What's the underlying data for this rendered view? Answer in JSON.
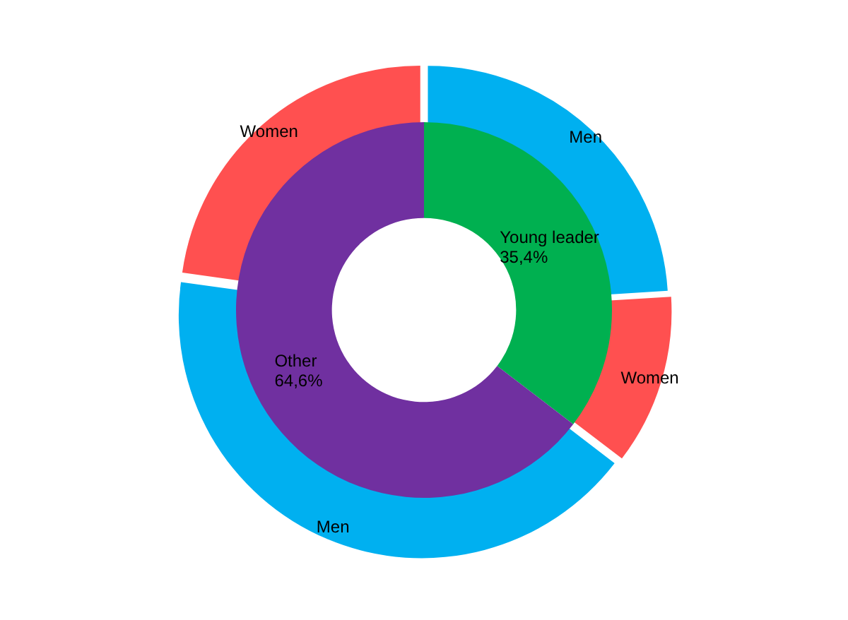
{
  "chart_data": [
    {
      "type": "donut",
      "legend": false,
      "categories": [
        "Young leader",
        "Other"
      ],
      "values": [
        35.4,
        64.6
      ],
      "value_labels": [
        "35,4%",
        "64,6%"
      ],
      "colors": [
        "#00b050",
        "#7030a0"
      ]
    },
    {
      "type": "donut",
      "legend": false,
      "categories": [
        "Men",
        "Women",
        "Men",
        "Women"
      ],
      "values": [
        24,
        11.4,
        41.8,
        22.8
      ],
      "colors": [
        "#00b0f0",
        "#ff5050",
        "#00b0f0",
        "#ff5050"
      ]
    }
  ]
}
